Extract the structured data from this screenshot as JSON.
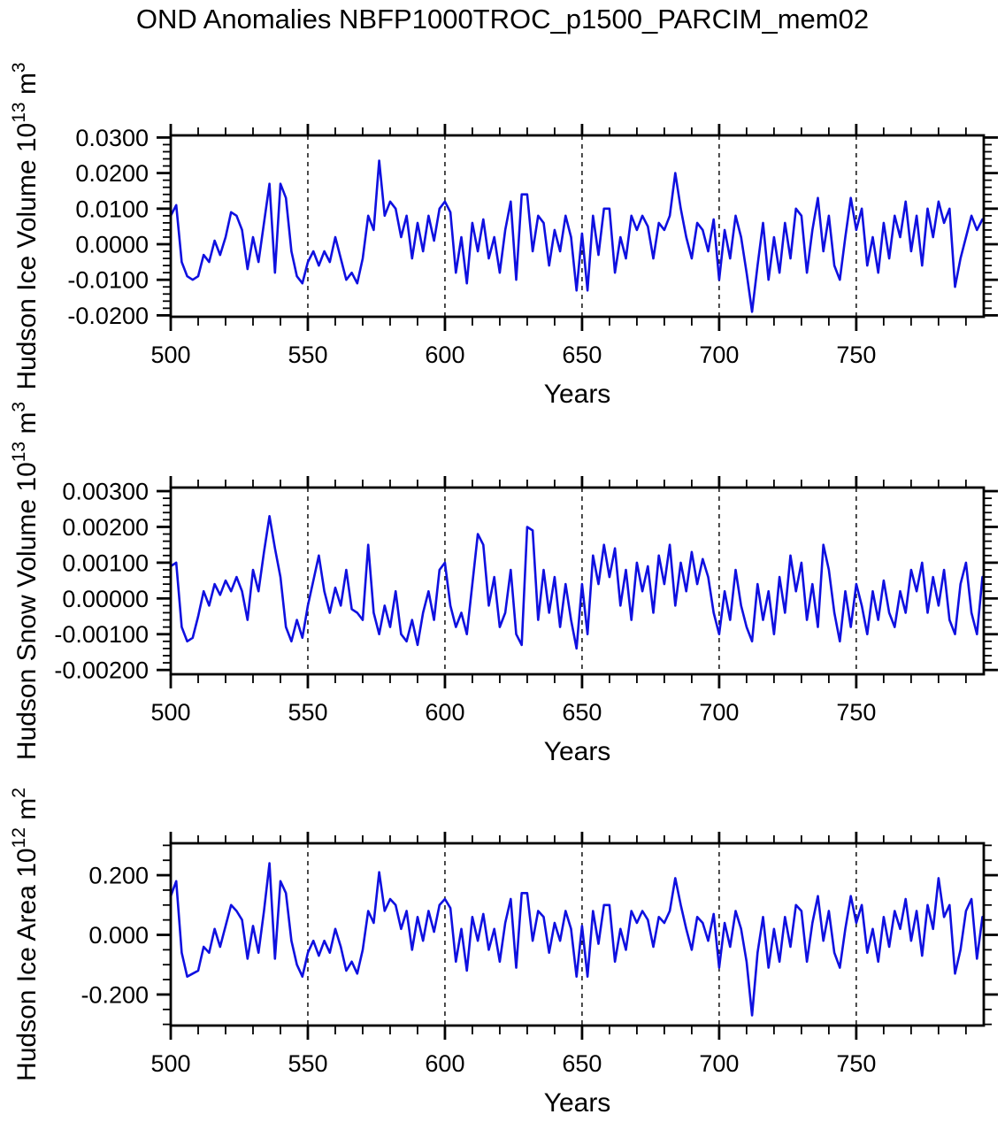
{
  "title": "OND Anomalies NBFP1000TROC_p1500_PARCIM_mem02",
  "style": {
    "line_color": "#0f10e0",
    "axis_color": "#000000",
    "background": "#ffffff"
  },
  "chart_data": [
    {
      "type": "line",
      "name": "hudson-ice-volume",
      "ylabel": {
        "main": "Hudson Ice Volume 10",
        "sup1": "13",
        "mid": " m",
        "sup2": "3"
      },
      "xlabel": "Years",
      "xlim": [
        500,
        796.5
      ],
      "ylim": [
        -0.0204,
        0.0306
      ],
      "xticks": [
        {
          "v": 500,
          "label": "500"
        },
        {
          "v": 550,
          "label": "550"
        },
        {
          "v": 600,
          "label": "600"
        },
        {
          "v": 650,
          "label": "650"
        },
        {
          "v": 700,
          "label": "700"
        },
        {
          "v": 750,
          "label": "750"
        }
      ],
      "x_minor_step": 10,
      "gridlines": [
        550,
        600,
        650,
        700,
        750
      ],
      "yticks": [
        {
          "v": 0.03,
          "label": "0.0300"
        },
        {
          "v": 0.02,
          "label": "0.0200"
        },
        {
          "v": 0.01,
          "label": "0.0100"
        },
        {
          "v": 0.0,
          "label": "0.0000"
        },
        {
          "v": -0.01,
          "label": "-0.0100"
        },
        {
          "v": -0.02,
          "label": "-0.0200"
        }
      ],
      "y_minor_step": 0.002,
      "x_start": 500,
      "x_step": 2,
      "scale": 0.001,
      "values": [
        8,
        11,
        -5,
        -9,
        -10,
        -9,
        -3,
        -5,
        1,
        -3,
        2,
        9,
        8,
        4,
        -7,
        2,
        -5,
        6,
        17,
        -8,
        17,
        13,
        -2,
        -9,
        -11,
        -5,
        -2,
        -6,
        -2,
        -5,
        2,
        -4,
        -10,
        -8,
        -11,
        -4,
        8,
        4,
        23.5,
        8,
        12,
        10,
        2,
        8,
        -4,
        6,
        -2,
        8,
        1,
        10,
        12,
        9,
        -8,
        2,
        -11,
        6,
        -2,
        7,
        -4,
        2,
        -8,
        4,
        12,
        -10,
        14,
        14,
        -2,
        8,
        6,
        -6,
        4,
        -2,
        8,
        2,
        -13,
        3,
        -13,
        8,
        -3,
        10,
        10,
        -8,
        2,
        -4,
        8,
        4,
        8,
        5,
        -4,
        6,
        4,
        8,
        20,
        10,
        2,
        -4,
        6,
        4,
        -2,
        7,
        -10,
        4,
        -4,
        8,
        2,
        -8,
        -19,
        -6,
        6,
        -10,
        2,
        -8,
        6,
        -4,
        10,
        8,
        -8,
        4,
        13,
        -2,
        8,
        -6,
        -10,
        2,
        13,
        4,
        10,
        -6,
        2,
        -8,
        6,
        -4,
        8,
        2,
        12,
        -2,
        8,
        -6,
        10,
        2,
        12,
        6,
        10,
        -12,
        -4,
        2,
        8,
        4,
        7
      ]
    },
    {
      "type": "line",
      "name": "hudson-snow-volume",
      "ylabel": {
        "main": "Hudson Snow Volume 10",
        "sup1": "13",
        "mid": " m",
        "sup2": "3"
      },
      "xlabel": "Years",
      "xlim": [
        500,
        796.5
      ],
      "ylim": [
        -0.00212,
        0.0031
      ],
      "xticks": [
        {
          "v": 500,
          "label": "500"
        },
        {
          "v": 550,
          "label": "550"
        },
        {
          "v": 600,
          "label": "600"
        },
        {
          "v": 650,
          "label": "650"
        },
        {
          "v": 700,
          "label": "700"
        },
        {
          "v": 750,
          "label": "750"
        }
      ],
      "x_minor_step": 10,
      "gridlines": [
        550,
        600,
        650,
        700,
        750
      ],
      "yticks": [
        {
          "v": 0.003,
          "label": "0.00300"
        },
        {
          "v": 0.002,
          "label": "0.00200"
        },
        {
          "v": 0.001,
          "label": "0.00100"
        },
        {
          "v": 0.0,
          "label": "0.00000"
        },
        {
          "v": -0.001,
          "label": "-0.00100"
        },
        {
          "v": -0.002,
          "label": "-0.00200"
        }
      ],
      "y_minor_step": 0.0002,
      "x_start": 500,
      "x_step": 2,
      "scale": 0.0001,
      "values": [
        9,
        10,
        -8,
        -12,
        -11,
        -5,
        2,
        -2,
        4,
        1,
        5,
        2,
        6,
        2,
        -6,
        8,
        2,
        13,
        23,
        14,
        6,
        -8,
        -12,
        -6,
        -11,
        -2,
        5,
        12,
        2,
        -4,
        3,
        -2,
        8,
        -3,
        -4,
        -6,
        15,
        -4,
        -10,
        -2,
        -8,
        2,
        -10,
        -12,
        -6,
        -13,
        -4,
        2,
        -6,
        8,
        10,
        -2,
        -8,
        -4,
        -10,
        4,
        18,
        15,
        -2,
        6,
        -8,
        -4,
        8,
        -10,
        -13,
        20,
        19,
        -6,
        8,
        -4,
        6,
        -8,
        4,
        -6,
        -14,
        4,
        -10,
        12,
        4,
        15,
        6,
        14,
        -2,
        8,
        -6,
        10,
        2,
        9,
        -4,
        12,
        4,
        15,
        -2,
        10,
        2,
        13,
        4,
        11,
        6,
        -4,
        -10,
        2,
        -6,
        8,
        -2,
        -8,
        -12,
        4,
        -6,
        2,
        -10,
        6,
        -4,
        12,
        2,
        10,
        -6,
        4,
        -8,
        15,
        8,
        -4,
        -12,
        2,
        -8,
        4,
        -2,
        -10,
        2,
        -6,
        5,
        -4,
        -8,
        2,
        -4,
        8,
        2,
        10,
        -4,
        6,
        -2,
        8,
        -6,
        -10,
        4,
        10,
        -4,
        -10,
        6
      ]
    },
    {
      "type": "line",
      "name": "hudson-ice-area",
      "ylabel": {
        "main": "Hudson Ice Area 10",
        "sup1": "12",
        "mid": " m",
        "sup2": "2"
      },
      "xlabel": "Years",
      "xlim": [
        500,
        796.5
      ],
      "ylim": [
        -0.304,
        0.307
      ],
      "xticks": [
        {
          "v": 500,
          "label": "500"
        },
        {
          "v": 550,
          "label": "550"
        },
        {
          "v": 600,
          "label": "600"
        },
        {
          "v": 650,
          "label": "650"
        },
        {
          "v": 700,
          "label": "700"
        },
        {
          "v": 750,
          "label": "750"
        }
      ],
      "x_minor_step": 10,
      "gridlines": [
        550,
        600,
        650,
        700,
        750
      ],
      "yticks": [
        {
          "v": 0.2,
          "label": "0.200"
        },
        {
          "v": 0.0,
          "label": "0.000"
        },
        {
          "v": -0.2,
          "label": "-0.200"
        }
      ],
      "y_minor_step": 0.05,
      "x_start": 500,
      "x_step": 2,
      "scale": 0.01,
      "values": [
        13,
        18,
        -6,
        -14,
        -13,
        -12,
        -4,
        -6,
        2,
        -4,
        3,
        10,
        8,
        5,
        -8,
        3,
        -6,
        8,
        24,
        -8,
        18,
        14,
        -2,
        -10,
        -14,
        -6,
        -2,
        -7,
        -2,
        -6,
        2,
        -4,
        -12,
        -9,
        -13,
        -5,
        8,
        4,
        21,
        8,
        12,
        10,
        2,
        8,
        -5,
        6,
        -2,
        8,
        1,
        10,
        12,
        9,
        -9,
        2,
        -12,
        6,
        -2,
        7,
        -5,
        2,
        -9,
        4,
        12,
        -11,
        14,
        14,
        -2,
        8,
        6,
        -6,
        4,
        -2,
        8,
        2,
        -14,
        3,
        -14,
        8,
        -3,
        10,
        10,
        -9,
        2,
        -5,
        8,
        4,
        8,
        5,
        -4,
        6,
        4,
        8,
        19,
        10,
        2,
        -5,
        6,
        4,
        -2,
        7,
        -11,
        4,
        -4,
        8,
        2,
        -9,
        -27,
        -6,
        6,
        -11,
        2,
        -9,
        6,
        -4,
        10,
        8,
        -9,
        4,
        13,
        -2,
        8,
        -6,
        -11,
        2,
        13,
        4,
        10,
        -6,
        2,
        -9,
        6,
        -4,
        8,
        2,
        12,
        -2,
        8,
        -7,
        10,
        2,
        19,
        6,
        10,
        -13,
        -5,
        8,
        12,
        -8,
        6
      ]
    }
  ]
}
